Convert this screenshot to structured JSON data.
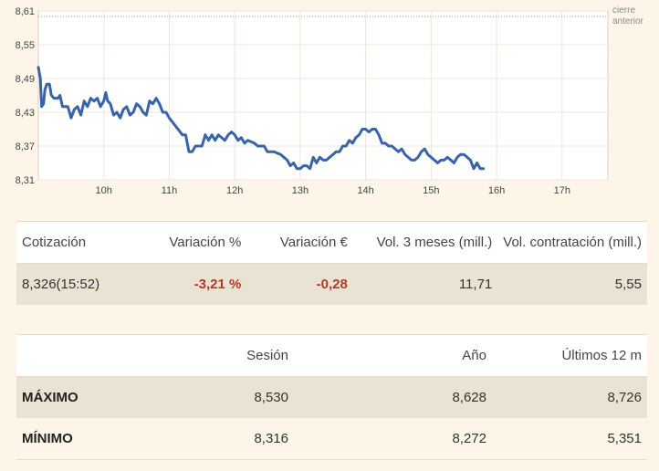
{
  "chart_data": {
    "type": "line",
    "ylim": [
      8.31,
      8.61
    ],
    "y_ticks": [
      "8,31",
      "8,37",
      "8,43",
      "8,49",
      "8,55",
      "8,61"
    ],
    "x_ticks": [
      "10h",
      "11h",
      "12h",
      "13h",
      "14h",
      "15h",
      "16h",
      "17h"
    ],
    "x_range_hours": [
      9.0,
      17.7
    ],
    "reference": {
      "label_line1": "cierre",
      "label_line2": "anterior",
      "value": 8.6
    },
    "line_color": "#3a64a8",
    "series": [
      {
        "points": [
          [
            9.0,
            8.51
          ],
          [
            9.03,
            8.49
          ],
          [
            9.05,
            8.44
          ],
          [
            9.08,
            8.445
          ],
          [
            9.1,
            8.47
          ],
          [
            9.13,
            8.48
          ],
          [
            9.17,
            8.48
          ],
          [
            9.2,
            8.46
          ],
          [
            9.24,
            8.455
          ],
          [
            9.3,
            8.455
          ],
          [
            9.33,
            8.46
          ],
          [
            9.37,
            8.44
          ],
          [
            9.45,
            8.44
          ],
          [
            9.5,
            8.42
          ],
          [
            9.55,
            8.435
          ],
          [
            9.6,
            8.44
          ],
          [
            9.65,
            8.425
          ],
          [
            9.7,
            8.45
          ],
          [
            9.75,
            8.44
          ],
          [
            9.8,
            8.455
          ],
          [
            9.85,
            8.45
          ],
          [
            9.9,
            8.455
          ],
          [
            9.95,
            8.44
          ],
          [
            10.0,
            8.45
          ],
          [
            10.03,
            8.465
          ],
          [
            10.06,
            8.45
          ],
          [
            10.1,
            8.445
          ],
          [
            10.15,
            8.425
          ],
          [
            10.2,
            8.43
          ],
          [
            10.25,
            8.42
          ],
          [
            10.3,
            8.435
          ],
          [
            10.35,
            8.44
          ],
          [
            10.4,
            8.425
          ],
          [
            10.45,
            8.43
          ],
          [
            10.5,
            8.445
          ],
          [
            10.55,
            8.44
          ],
          [
            10.6,
            8.43
          ],
          [
            10.65,
            8.425
          ],
          [
            10.7,
            8.45
          ],
          [
            10.75,
            8.445
          ],
          [
            10.8,
            8.455
          ],
          [
            10.85,
            8.445
          ],
          [
            10.9,
            8.43
          ],
          [
            10.95,
            8.43
          ],
          [
            11.0,
            8.42
          ],
          [
            11.1,
            8.405
          ],
          [
            11.2,
            8.39
          ],
          [
            11.25,
            8.39
          ],
          [
            11.3,
            8.36
          ],
          [
            11.35,
            8.36
          ],
          [
            11.4,
            8.37
          ],
          [
            11.45,
            8.37
          ],
          [
            11.5,
            8.37
          ],
          [
            11.55,
            8.39
          ],
          [
            11.6,
            8.38
          ],
          [
            11.65,
            8.39
          ],
          [
            11.7,
            8.38
          ],
          [
            11.75,
            8.39
          ],
          [
            11.8,
            8.385
          ],
          [
            11.85,
            8.38
          ],
          [
            11.9,
            8.39
          ],
          [
            11.95,
            8.395
          ],
          [
            12.0,
            8.39
          ],
          [
            12.05,
            8.38
          ],
          [
            12.1,
            8.385
          ],
          [
            12.15,
            8.375
          ],
          [
            12.2,
            8.38
          ],
          [
            12.3,
            8.375
          ],
          [
            12.35,
            8.37
          ],
          [
            12.45,
            8.37
          ],
          [
            12.5,
            8.36
          ],
          [
            12.6,
            8.36
          ],
          [
            12.7,
            8.355
          ],
          [
            12.75,
            8.35
          ],
          [
            12.8,
            8.345
          ],
          [
            12.85,
            8.335
          ],
          [
            12.9,
            8.34
          ],
          [
            12.95,
            8.33
          ],
          [
            13.0,
            8.33
          ],
          [
            13.05,
            8.335
          ],
          [
            13.1,
            8.335
          ],
          [
            13.15,
            8.33
          ],
          [
            13.2,
            8.35
          ],
          [
            13.25,
            8.34
          ],
          [
            13.3,
            8.35
          ],
          [
            13.35,
            8.345
          ],
          [
            13.4,
            8.345
          ],
          [
            13.45,
            8.35
          ],
          [
            13.5,
            8.355
          ],
          [
            13.55,
            8.36
          ],
          [
            13.6,
            8.36
          ],
          [
            13.65,
            8.37
          ],
          [
            13.7,
            8.37
          ],
          [
            13.75,
            8.38
          ],
          [
            13.8,
            8.375
          ],
          [
            13.85,
            8.385
          ],
          [
            13.9,
            8.39
          ],
          [
            13.95,
            8.4
          ],
          [
            14.0,
            8.4
          ],
          [
            14.05,
            8.395
          ],
          [
            14.1,
            8.4
          ],
          [
            14.15,
            8.4
          ],
          [
            14.2,
            8.39
          ],
          [
            14.25,
            8.375
          ],
          [
            14.3,
            8.375
          ],
          [
            14.35,
            8.37
          ],
          [
            14.4,
            8.37
          ],
          [
            14.45,
            8.365
          ],
          [
            14.5,
            8.36
          ],
          [
            14.55,
            8.365
          ],
          [
            14.6,
            8.355
          ],
          [
            14.65,
            8.35
          ],
          [
            14.7,
            8.345
          ],
          [
            14.75,
            8.345
          ],
          [
            14.8,
            8.35
          ],
          [
            14.85,
            8.36
          ],
          [
            14.9,
            8.365
          ],
          [
            14.95,
            8.355
          ],
          [
            15.0,
            8.35
          ],
          [
            15.05,
            8.345
          ],
          [
            15.1,
            8.34
          ],
          [
            15.15,
            8.345
          ],
          [
            15.2,
            8.345
          ],
          [
            15.25,
            8.35
          ],
          [
            15.3,
            8.345
          ],
          [
            15.35,
            8.34
          ],
          [
            15.4,
            8.35
          ],
          [
            15.45,
            8.355
          ],
          [
            15.5,
            8.355
          ],
          [
            15.55,
            8.35
          ],
          [
            15.6,
            8.345
          ],
          [
            15.65,
            8.33
          ],
          [
            15.7,
            8.34
          ],
          [
            15.75,
            8.33
          ],
          [
            15.8,
            8.33
          ]
        ]
      }
    ]
  },
  "quote_table": {
    "headers": {
      "cotizacion": "Cotización",
      "variacion_pct": "Variación %",
      "variacion_eur": "Variación €",
      "vol_3m": "Vol. 3 meses (mill.)",
      "vol_contr": "Vol. contratación (mill.)"
    },
    "row": {
      "cotizacion": "8,326(15:52)",
      "variacion_pct": "-3,21 %",
      "variacion_eur": "-0,28",
      "vol_3m": "11,71",
      "vol_contr": "5,55"
    }
  },
  "range_table": {
    "headers": {
      "label": "",
      "sesion": "Sesión",
      "anio": "Año",
      "ultimos": "Últimos 12 m"
    },
    "rows": [
      {
        "label": "MÁXIMO",
        "sesion": "8,530",
        "anio": "8,628",
        "ultimos": "8,726"
      },
      {
        "label": "MÍNIMO",
        "sesion": "8,316",
        "anio": "8,272",
        "ultimos": "5,351"
      }
    ]
  }
}
